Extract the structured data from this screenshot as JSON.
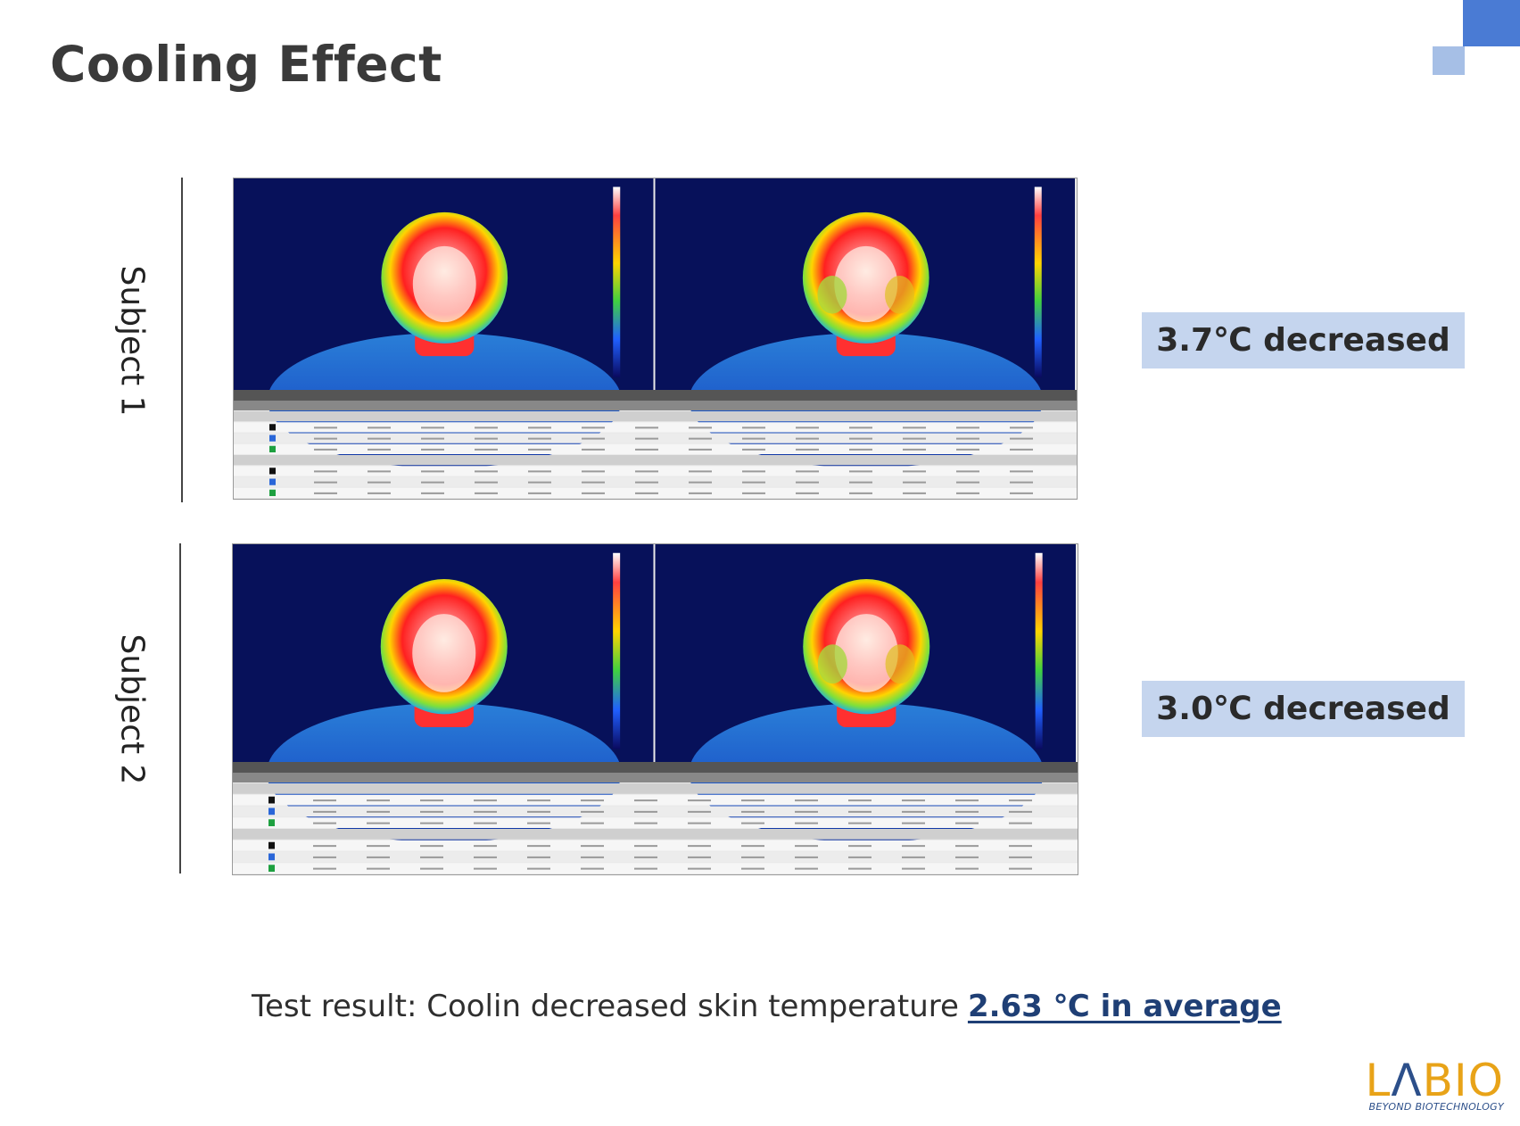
{
  "slide": {
    "title": "Cooling Effect",
    "accent_colors": {
      "dark_blue": "#4a7bd4",
      "light_blue": "#a6bfe6",
      "badge": "#c5d5ee"
    }
  },
  "subjects": [
    {
      "label": "Subject 1",
      "result": "3.7℃ decreased"
    },
    {
      "label": "Subject 2",
      "result": "3.0℃ decreased"
    }
  ],
  "footer": {
    "result_prefix": "Test result: Coolin decreased skin temperature",
    "result_highlight": "2.63 ℃ in average"
  },
  "logo": {
    "word_start": "L",
    "word_a": "Λ",
    "word_end": "BIO",
    "tagline": "BEYOND BIOTECHNOLOGY"
  }
}
